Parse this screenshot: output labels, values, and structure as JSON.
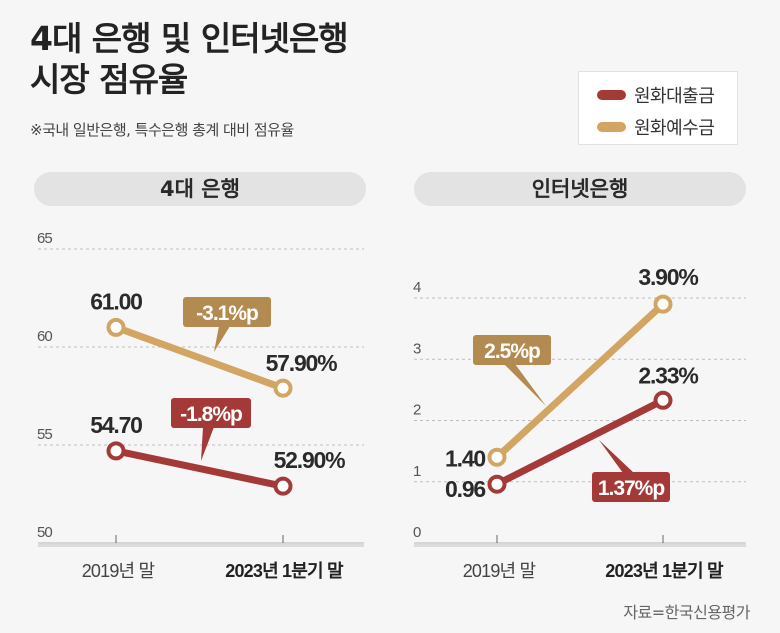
{
  "title_lines": [
    "4대 은행 및 인터넷은행",
    "시장 점유율"
  ],
  "note": "※국내 일반은행, 특수은행 총계 대비 점유율",
  "legend": [
    {
      "label": "원화대출금",
      "color": "#a33a38"
    },
    {
      "label": "원화예수금",
      "color": "#d3a563"
    }
  ],
  "source": "자료=한국신용평가",
  "colors": {
    "loan": "#a33a38",
    "deposit": "#d3a563",
    "deposit_callout": "#b38a4f",
    "loan_callout": "#a33a38",
    "pill_bg": "#e3e3e3",
    "background": "#f6f6f6"
  },
  "chart_data": [
    {
      "type": "line",
      "title": "4대 은행",
      "categories": [
        "2019년 말",
        "2023년 1분기 말"
      ],
      "category_emphasis": [
        false,
        true
      ],
      "ylim": [
        50,
        65
      ],
      "yticks": [
        50,
        55,
        60,
        65
      ],
      "grid": true,
      "unit": "%",
      "series": [
        {
          "name": "원화예수금",
          "values": [
            61.0,
            57.9
          ],
          "labels": [
            "61.00",
            "57.90%"
          ],
          "change_label": "-3.1%p"
        },
        {
          "name": "원화대출금",
          "values": [
            54.7,
            52.9
          ],
          "labels": [
            "54.70",
            "52.90%"
          ],
          "change_label": "-1.8%p"
        }
      ]
    },
    {
      "type": "line",
      "title": "인터넷은행",
      "categories": [
        "2019년 말",
        "2023년 1분기 말"
      ],
      "category_emphasis": [
        false,
        true
      ],
      "ylim": [
        0,
        4
      ],
      "yticks": [
        0,
        1,
        2,
        3,
        4
      ],
      "grid": true,
      "unit": "%",
      "series": [
        {
          "name": "원화예수금",
          "values": [
            1.4,
            3.9
          ],
          "labels": [
            "1.40",
            "3.90%"
          ],
          "change_label": "2.5%p"
        },
        {
          "name": "원화대출금",
          "values": [
            0.96,
            2.33
          ],
          "labels": [
            "0.96",
            "2.33%"
          ],
          "change_label": "1.37%p"
        }
      ]
    }
  ]
}
